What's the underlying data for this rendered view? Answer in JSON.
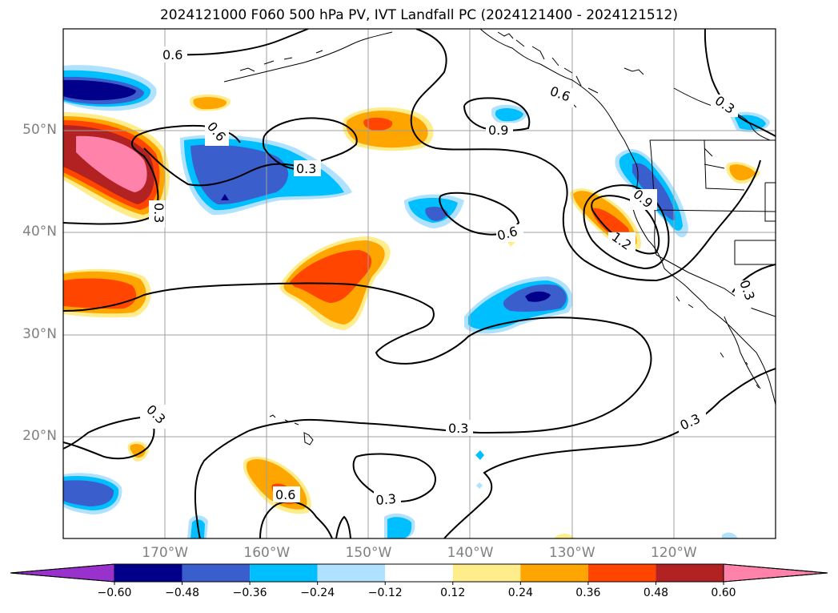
{
  "title": "2024121000 F060 500 hPa PV, IVT Landfall PC (2024121400 - 2024121512)",
  "lat_labels": [
    {
      "text": "50°N",
      "lat": 50
    },
    {
      "text": "40°N",
      "lat": 40
    },
    {
      "text": "30°N",
      "lat": 30
    },
    {
      "text": "20°N",
      "lat": 20
    }
  ],
  "lon_labels": [
    {
      "text": "170°W",
      "lon": -170
    },
    {
      "text": "160°W",
      "lon": -160
    },
    {
      "text": "150°W",
      "lon": -150
    },
    {
      "text": "140°W",
      "lon": -140
    },
    {
      "text": "130°W",
      "lon": -130
    },
    {
      "text": "120°W",
      "lon": -120
    }
  ],
  "extent": {
    "lon_min": -180,
    "lon_max": -110,
    "lat_min": 10,
    "lat_max": 60
  },
  "colorbar": {
    "colors": [
      "#9932cc",
      "#00008b",
      "#3a5fcd",
      "#00bfff",
      "#b0e2ff",
      "#ffffff",
      "#ffec8b",
      "#ffa500",
      "#ff4500",
      "#b22222",
      "#ff82ab"
    ],
    "ticks": [
      "−0.60",
      "−0.48",
      "−0.36",
      "−0.24",
      "−0.12",
      "0.12",
      "0.24",
      "0.36",
      "0.48",
      "0.60"
    ]
  },
  "contour_labels": [
    "0.6",
    "0.6",
    "0.3",
    "0.3",
    "0.6",
    "0.9",
    "0.6",
    "0.3",
    "0.9",
    "1.2",
    "0.3",
    "0.3",
    "0.3",
    "0.6",
    "0.3",
    "0.3"
  ]
}
